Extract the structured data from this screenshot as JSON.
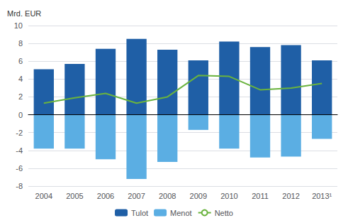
{
  "chart_data": {
    "type": "bar",
    "ylabel": "Mrd. EUR",
    "categories": [
      "2004",
      "2005",
      "2006",
      "2007",
      "2008",
      "2009",
      "2010",
      "2011",
      "2012",
      "2013¹"
    ],
    "series": [
      {
        "name": "Tulot",
        "type": "bar",
        "color": "#1f5fa6",
        "values": [
          5.1,
          5.7,
          7.4,
          8.5,
          7.3,
          6.1,
          8.2,
          7.6,
          7.8,
          6.1
        ]
      },
      {
        "name": "Menot",
        "type": "bar",
        "color": "#5baee3",
        "values": [
          -3.8,
          -3.8,
          -5.0,
          -7.2,
          -5.3,
          -1.7,
          -3.8,
          -4.8,
          -4.7,
          -2.7
        ]
      },
      {
        "name": "Netto",
        "type": "line",
        "color": "#6ab33e",
        "values": [
          1.3,
          1.9,
          2.4,
          1.3,
          2.0,
          4.4,
          4.3,
          2.8,
          3.0,
          3.5
        ]
      }
    ],
    "ylim": [
      -8,
      10
    ],
    "yticks": [
      -8,
      -6,
      -4,
      -2,
      0,
      2,
      4,
      6,
      8,
      10
    ],
    "grid": true,
    "legend": "bottom"
  }
}
